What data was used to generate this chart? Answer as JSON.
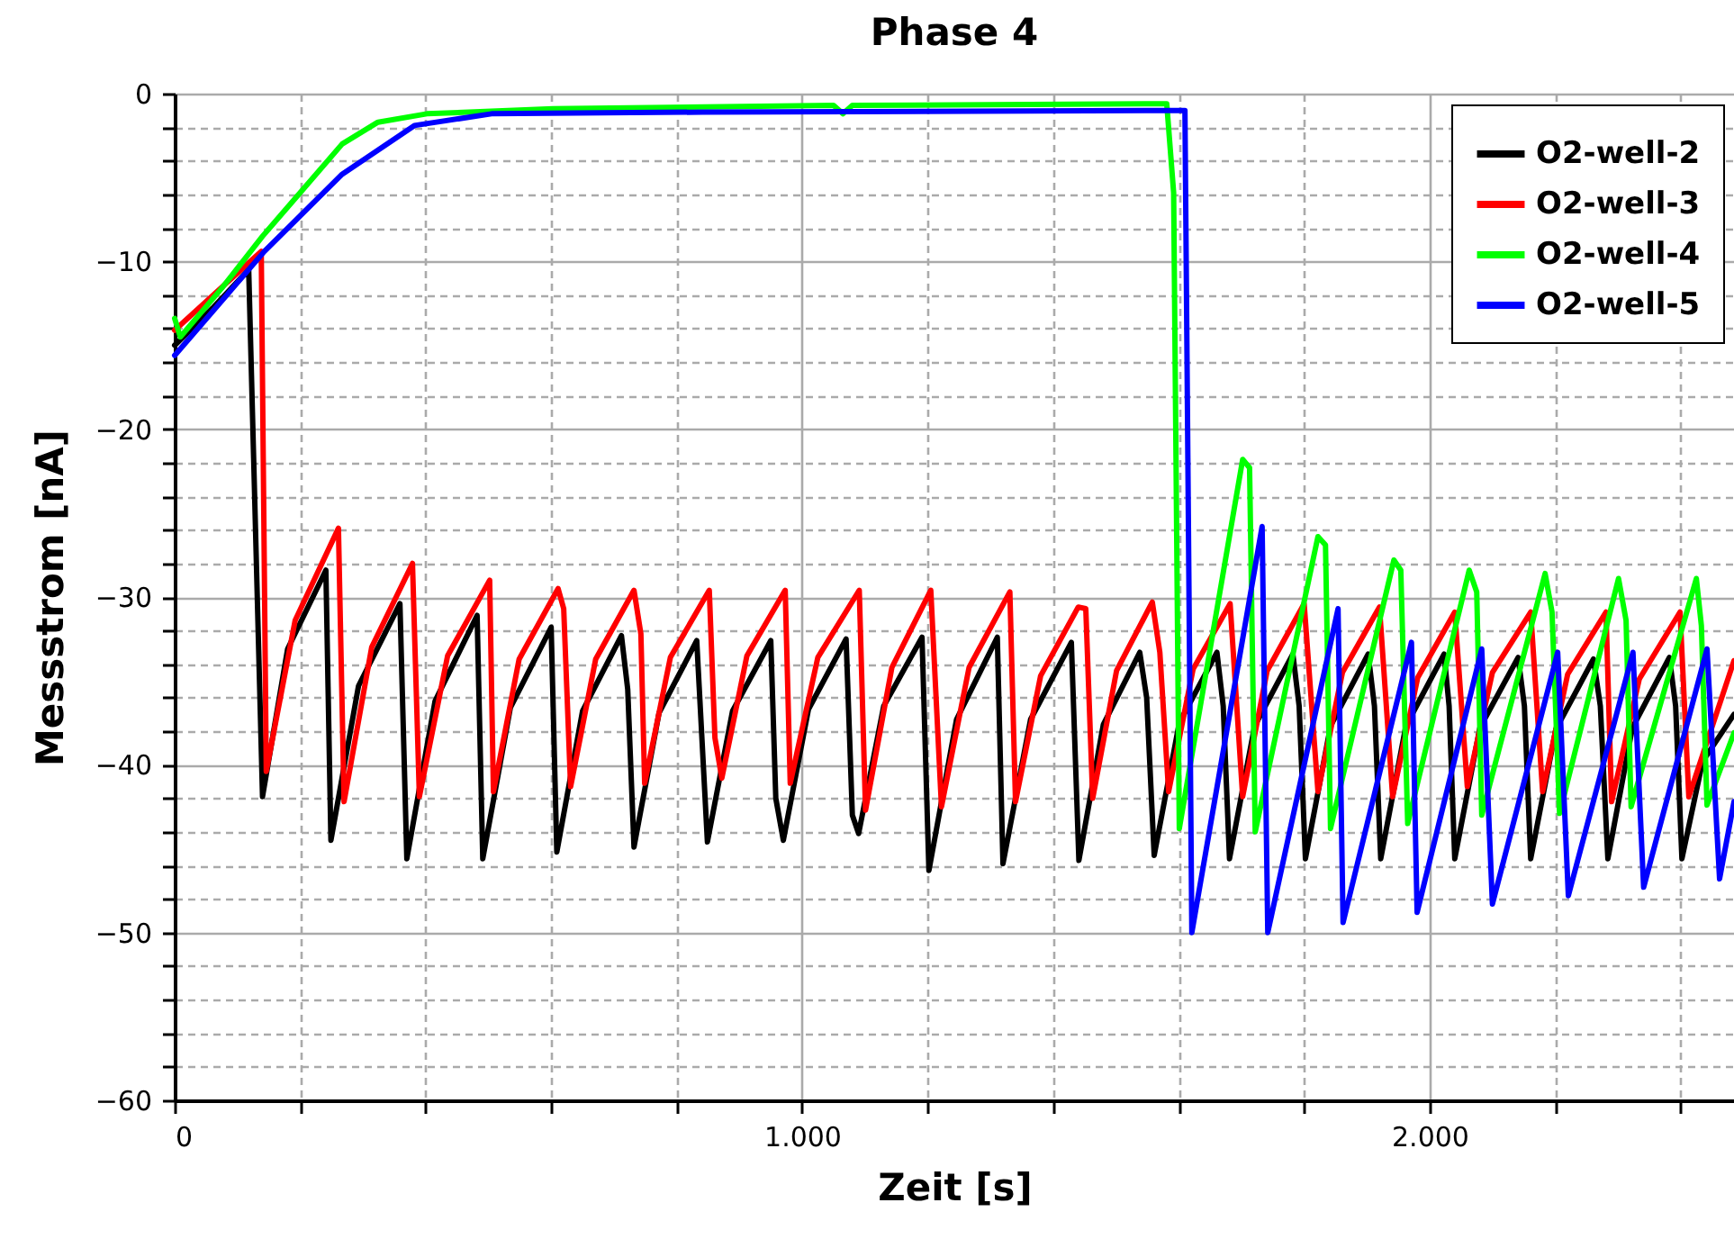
{
  "chart_data": {
    "type": "line",
    "title": "Phase 4",
    "xlabel": "Zeit [s]",
    "ylabel": "Messstrom [nA]",
    "xlim": [
      0,
      2485
    ],
    "ylim": [
      -60,
      0
    ],
    "xticks": [
      0,
      {
        "value": 200,
        "label": null
      },
      {
        "value": 400,
        "label": null
      },
      {
        "value": 600,
        "label": null
      },
      {
        "value": 800,
        "label": null
      },
      {
        "value": 1000,
        "label": "1.000"
      },
      {
        "value": 1200,
        "label": null
      },
      {
        "value": 1400,
        "label": null
      },
      {
        "value": 1600,
        "label": null
      },
      {
        "value": 1800,
        "label": null
      },
      {
        "value": 2000,
        "label": "2.000"
      },
      {
        "value": 2200,
        "label": null
      },
      {
        "value": 2400,
        "label": null
      }
    ],
    "yticks": [
      -60,
      {
        "value": -58,
        "label": null
      },
      {
        "value": -56,
        "label": null
      },
      {
        "value": -54,
        "label": null
      },
      {
        "value": -52,
        "label": null
      },
      -50,
      {
        "value": -48,
        "label": null
      },
      {
        "value": -46,
        "label": null
      },
      {
        "value": -44,
        "label": null
      },
      {
        "value": -42,
        "label": null
      },
      -40,
      {
        "value": -38,
        "label": null
      },
      {
        "value": -36,
        "label": null
      },
      {
        "value": -34,
        "label": null
      },
      {
        "value": -32,
        "label": null
      },
      -30,
      {
        "value": -28,
        "label": null
      },
      {
        "value": -26,
        "label": null
      },
      {
        "value": -24,
        "label": null
      },
      {
        "value": -22,
        "label": null
      },
      -20,
      {
        "value": -18,
        "label": null
      },
      {
        "value": -16,
        "label": null
      },
      {
        "value": -14,
        "label": null
      },
      {
        "value": -12,
        "label": null
      },
      -10,
      {
        "value": -8,
        "label": null
      },
      {
        "value": -6,
        "label": null
      },
      {
        "value": -4,
        "label": null
      },
      {
        "value": -2,
        "label": null
      },
      0
    ],
    "grid": true,
    "legend": "top right",
    "line_style": "solid",
    "marker": "none",
    "series": [
      {
        "name": "O2-well-2",
        "color": "#000000",
        "x": [
          0,
          60,
          118,
          140,
          180,
          241,
          249,
          293,
          359,
          370,
          415,
          482,
          491,
          535,
          600,
          609,
          650,
          712,
          722,
          732,
          772,
          832,
          849,
          889,
          950,
          958,
          970,
          1010,
          1070,
          1080,
          1090,
          1130,
          1191,
          1202,
          1246,
          1311,
          1320,
          1364,
          1429,
          1441,
          1480,
          1538,
          1549,
          1561,
          1601,
          1661,
          1671,
          1681,
          1721,
          1782,
          1792,
          1802,
          1842,
          1902,
          1912,
          1922,
          1962,
          2023,
          2031,
          2040,
          2080,
          2141,
          2151,
          2161,
          2201,
          2261,
          2272,
          2284,
          2323,
          2382,
          2392,
          2402,
          2435,
          2485
        ],
        "values": [
          -15,
          -12.8,
          -10.5,
          -41.9,
          -33.1,
          -28.4,
          -44.5,
          -35.3,
          -30.4,
          -45.6,
          -36.2,
          -31.1,
          -45.6,
          -36.6,
          -31.8,
          -45.2,
          -36.8,
          -32.3,
          -35.5,
          -44.9,
          -36.9,
          -32.6,
          -44.6,
          -36.8,
          -32.6,
          -42,
          -44.5,
          -36.7,
          -32.5,
          -43,
          -44.1,
          -36.5,
          -32.4,
          -46.3,
          -37.3,
          -32.4,
          -45.9,
          -37.3,
          -32.7,
          -45.7,
          -37.6,
          -33.3,
          -36,
          -45.4,
          -37.5,
          -33.3,
          -36.5,
          -45.6,
          -37.7,
          -33.4,
          -36.5,
          -45.6,
          -37.7,
          -33.4,
          -36.5,
          -45.6,
          -37.7,
          -33.4,
          -36.5,
          -45.6,
          -37.8,
          -33.6,
          -36.5,
          -45.6,
          -37.9,
          -33.7,
          -36.5,
          -45.6,
          -37.8,
          -33.6,
          -36.5,
          -45.6,
          -39.8,
          -37
        ]
      },
      {
        "name": "O2-well-3",
        "color": "#ff0000",
        "x": [
          0,
          138,
          146,
          192,
          261,
          270,
          314,
          379,
          390,
          435,
          502,
          508,
          549,
          611,
          620,
          631,
          671,
          732,
          743,
          749,
          790,
          852,
          861,
          872,
          912,
          973,
          981,
          1025,
          1091,
          1101,
          1143,
          1205,
          1222,
          1266,
          1331,
          1340,
          1380,
          1440,
          1452,
          1463,
          1501,
          1558,
          1570,
          1584,
          1623,
          1682,
          1702,
          1741,
          1800,
          1822,
          1861,
          1920,
          1941,
          1981,
          2040,
          2060,
          2100,
          2161,
          2180,
          2220,
          2281,
          2290,
          2334,
          2399,
          2413,
          2485
        ],
        "values": [
          -14.1,
          -9.4,
          -40.4,
          -31.4,
          -25.9,
          -42.2,
          -33,
          -28,
          -41.9,
          -33.5,
          -29,
          -41.6,
          -33.7,
          -29.5,
          -30.7,
          -41.3,
          -33.7,
          -29.6,
          -32.2,
          -41.1,
          -33.6,
          -29.6,
          -38.4,
          -40.8,
          -33.5,
          -29.6,
          -41.1,
          -33.6,
          -29.6,
          -42.7,
          -34.2,
          -29.6,
          -42.5,
          -34.2,
          -29.7,
          -42.2,
          -34.7,
          -30.6,
          -30.7,
          -42,
          -34.4,
          -30.3,
          -33.3,
          -41.6,
          -34.3,
          -30.4,
          -41.9,
          -34.4,
          -30.4,
          -41.6,
          -34.5,
          -30.6,
          -41.9,
          -34.8,
          -30.9,
          -41.3,
          -34.5,
          -30.9,
          -41.6,
          -34.6,
          -30.9,
          -42.2,
          -34.9,
          -30.9,
          -41.9,
          -33.8
        ]
      },
      {
        "name": "O2-well-4",
        "color": "#00ff00",
        "x": [
          0,
          9,
          75,
          140,
          200,
          267,
          324,
          402,
          603,
          1050,
          1065,
          1080,
          1581,
          1592,
          1601,
          1702,
          1713,
          1722,
          1822,
          1834,
          1842,
          1943,
          1954,
          1965,
          2063,
          2075,
          2083,
          2184,
          2195,
          2207,
          2301,
          2313,
          2321,
          2425,
          2433,
          2442,
          2485
        ],
        "values": [
          -13.4,
          -14.5,
          -11.6,
          -8.5,
          -5.9,
          -3,
          -1.7,
          -1.2,
          -0.9,
          -0.7,
          -1.2,
          -0.7,
          -0.6,
          -5.9,
          -43.8,
          -21.8,
          -22.3,
          -44,
          -26.4,
          -26.9,
          -43.8,
          -27.8,
          -28.4,
          -43.5,
          -28.4,
          -29.7,
          -43,
          -28.6,
          -30.9,
          -42.9,
          -28.9,
          -31.4,
          -42.5,
          -28.9,
          -31.7,
          -42.4,
          -38.1
        ]
      },
      {
        "name": "O2-well-5",
        "color": "#0000ff",
        "x": [
          0,
          143,
          267,
          382,
          505,
          841,
          1610,
          1621,
          1733,
          1742,
          1854,
          1862,
          1971,
          1980,
          2083,
          2100,
          2204,
          2221,
          2324,
          2341,
          2442,
          2462,
          2485
        ],
        "values": [
          -15.6,
          -9.4,
          -4.8,
          -1.9,
          -1.2,
          -1.1,
          -1,
          -50,
          -25.8,
          -50,
          -30.7,
          -49.4,
          -32.7,
          -48.8,
          -33.1,
          -48.3,
          -33.3,
          -47.8,
          -33.3,
          -47.3,
          -33.1,
          -46.8,
          -42.2
        ]
      }
    ]
  }
}
